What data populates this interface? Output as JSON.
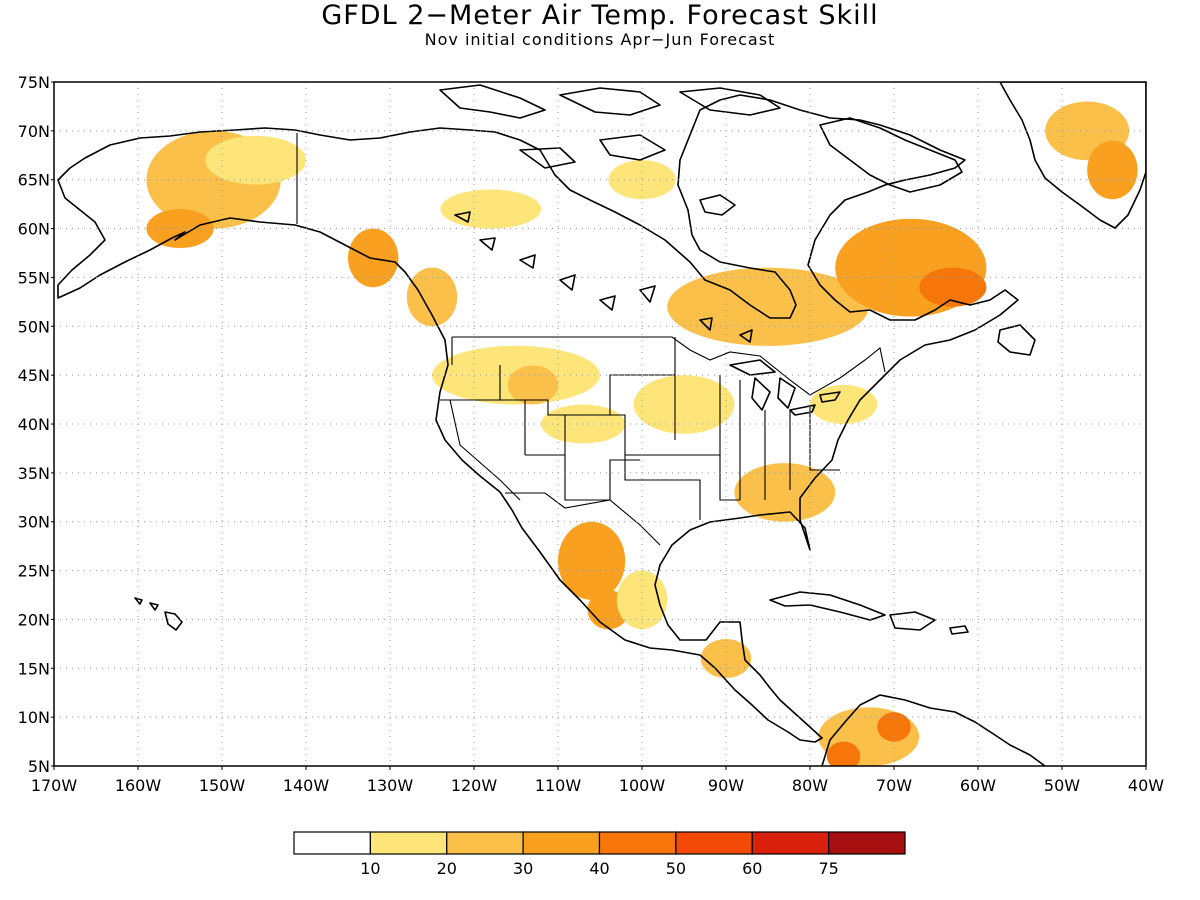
{
  "title": "GFDL 2−Meter Air Temp. Forecast Skill",
  "subtitle": "Nov initial conditions  Apr−Jun Forecast",
  "lat_labels": [
    "75N",
    "70N",
    "65N",
    "60N",
    "55N",
    "50N",
    "45N",
    "40N",
    "35N",
    "30N",
    "25N",
    "20N",
    "15N",
    "10N",
    "5N"
  ],
  "lon_labels": [
    "170W",
    "160W",
    "150W",
    "140W",
    "130W",
    "120W",
    "110W",
    "100W",
    "90W",
    "80W",
    "70W",
    "60W",
    "50W",
    "40W"
  ],
  "map_extent": {
    "lon": [
      -170,
      -40
    ],
    "lat": [
      5,
      75
    ]
  },
  "colorbar": {
    "colors": [
      "#ffffff",
      "#fde57a",
      "#fbc04a",
      "#f9a020",
      "#f7760a",
      "#f44a08",
      "#d9200c",
      "#a50f0f"
    ],
    "tick_labels": [
      "10",
      "20",
      "30",
      "40",
      "50",
      "60",
      "75"
    ]
  },
  "skill_patches": [
    {
      "lon": -151,
      "lat": 65,
      "rx": 8,
      "ry": 5,
      "level": 2
    },
    {
      "lon": -155,
      "lat": 60,
      "rx": 4,
      "ry": 2,
      "level": 3
    },
    {
      "lon": -146,
      "lat": 67,
      "rx": 6,
      "ry": 2.5,
      "level": 1
    },
    {
      "lon": -132,
      "lat": 57,
      "rx": 3,
      "ry": 3,
      "level": 3
    },
    {
      "lon": -125,
      "lat": 53,
      "rx": 3,
      "ry": 3,
      "level": 2
    },
    {
      "lon": -118,
      "lat": 62,
      "rx": 6,
      "ry": 2,
      "level": 1
    },
    {
      "lon": -100,
      "lat": 65,
      "rx": 4,
      "ry": 2,
      "level": 1
    },
    {
      "lon": -85,
      "lat": 52,
      "rx": 12,
      "ry": 4,
      "level": 2
    },
    {
      "lon": -68,
      "lat": 56,
      "rx": 9,
      "ry": 5,
      "level": 3
    },
    {
      "lon": -63,
      "lat": 54,
      "rx": 4,
      "ry": 2,
      "level": 4
    },
    {
      "lon": -47,
      "lat": 70,
      "rx": 5,
      "ry": 3,
      "level": 2
    },
    {
      "lon": -44,
      "lat": 66,
      "rx": 3,
      "ry": 3,
      "level": 3
    },
    {
      "lon": -115,
      "lat": 45,
      "rx": 10,
      "ry": 3,
      "level": 1
    },
    {
      "lon": -113,
      "lat": 44,
      "rx": 3,
      "ry": 2,
      "level": 2
    },
    {
      "lon": -107,
      "lat": 40,
      "rx": 5,
      "ry": 2,
      "level": 1
    },
    {
      "lon": -95,
      "lat": 42,
      "rx": 6,
      "ry": 3,
      "level": 1
    },
    {
      "lon": -83,
      "lat": 33,
      "rx": 6,
      "ry": 3,
      "level": 2
    },
    {
      "lon": -76,
      "lat": 42,
      "rx": 4,
      "ry": 2,
      "level": 1
    },
    {
      "lon": -106,
      "lat": 26,
      "rx": 4,
      "ry": 4,
      "level": 3
    },
    {
      "lon": -104,
      "lat": 21,
      "rx": 2.5,
      "ry": 2,
      "level": 3
    },
    {
      "lon": -100,
      "lat": 22,
      "rx": 3,
      "ry": 3,
      "level": 1
    },
    {
      "lon": -90,
      "lat": 16,
      "rx": 3,
      "ry": 2,
      "level": 2
    },
    {
      "lon": -73,
      "lat": 8,
      "rx": 6,
      "ry": 3,
      "level": 2
    },
    {
      "lon": -76,
      "lat": 6,
      "rx": 2,
      "ry": 1.5,
      "level": 4
    },
    {
      "lon": -70,
      "lat": 9,
      "rx": 2,
      "ry": 1.5,
      "level": 4
    }
  ]
}
